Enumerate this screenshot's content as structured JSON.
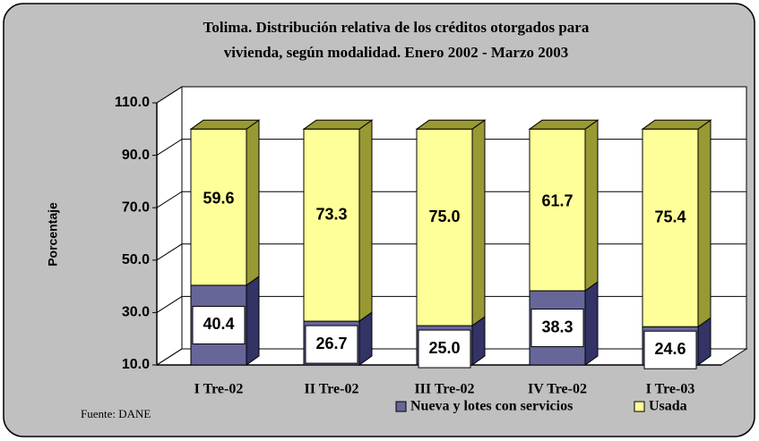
{
  "chart_data": {
    "type": "bar",
    "stacked": true,
    "three_d": true,
    "title": [
      "Tolima.  Distribución relativa de los créditos otorgados para",
      "vivienda, según modalidad. Enero 2002 - Marzo 2003"
    ],
    "y_label": "Porcentaje",
    "categories": [
      "I Tre-02",
      "II Tre-02",
      "III Tre-02",
      "IV Tre-02",
      "I Tre-03"
    ],
    "series": [
      {
        "name": "Nueva y lotes con servicios",
        "color": "#666699",
        "side_color": "#333366",
        "label_box": true,
        "values": [
          40.4,
          26.7,
          25.0,
          38.3,
          24.6
        ],
        "value_labels": [
          "40.4",
          "26.7",
          "25.0",
          "38.3",
          "24.6"
        ]
      },
      {
        "name": "Usada",
        "color": "#ffff99",
        "side_color": "#999933",
        "label_box": false,
        "values": [
          59.6,
          73.3,
          75.0,
          61.7,
          75.4
        ],
        "value_labels": [
          "59.6",
          "73.3",
          "75.0",
          "61.7",
          "75.4"
        ]
      }
    ],
    "ylim": [
      10,
      110
    ],
    "yticks": [
      {
        "value": 10,
        "label": "10.0"
      },
      {
        "value": 30,
        "label": "30.0"
      },
      {
        "value": 50,
        "label": "50.0"
      },
      {
        "value": 70,
        "label": "70.0"
      },
      {
        "value": 90,
        "label": "90.0"
      },
      {
        "value": 110,
        "label": "110.0"
      }
    ],
    "grid": true,
    "legend": "bottom",
    "source": "Fuente: DANE"
  }
}
